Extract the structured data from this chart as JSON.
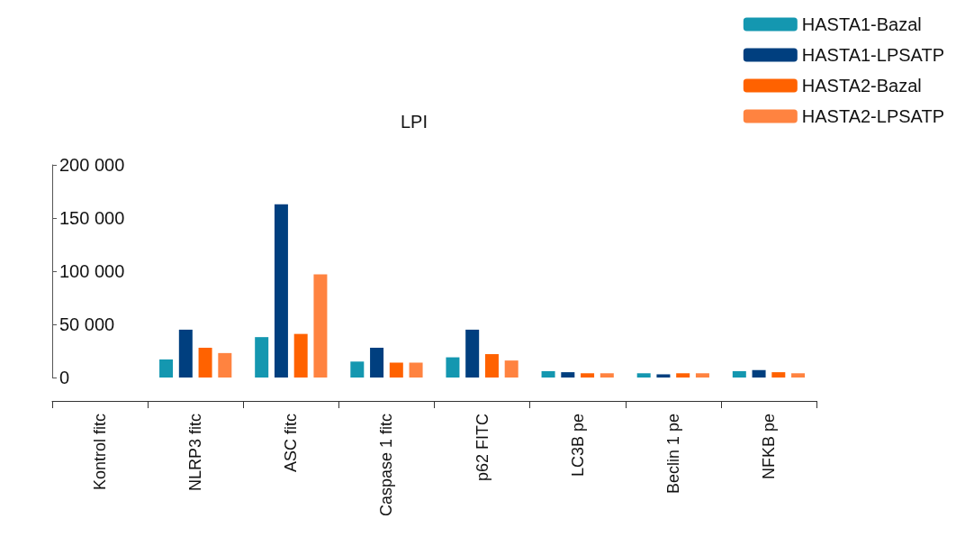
{
  "chart_data": {
    "type": "bar",
    "title": "LPI",
    "categories": [
      "Kontrol fitc",
      "NLRP3 fitc",
      "ASC fitc",
      "Caspase 1 fitc",
      "p62 FITC",
      "LC3B pe",
      "Beclin 1 pe",
      "NFKB pe"
    ],
    "series": [
      {
        "name": "HASTA1-Bazal",
        "color": "#1497b0",
        "values": [
          0,
          17000,
          38000,
          15000,
          19000,
          6000,
          4000,
          6000
        ]
      },
      {
        "name": "HASTA1-LPSATP",
        "color": "#003f7f",
        "values": [
          0,
          45000,
          163000,
          28000,
          45000,
          5000,
          3000,
          7000
        ]
      },
      {
        "name": "HASTA2-Bazal",
        "color": "#ff6200",
        "values": [
          0,
          28000,
          41000,
          14000,
          22000,
          4000,
          4000,
          5000
        ]
      },
      {
        "name": "HASTA2-LPSATP",
        "color": "#ff8340",
        "values": [
          0,
          23000,
          97000,
          14000,
          16000,
          4000,
          4000,
          4000
        ]
      }
    ],
    "ylim": [
      0,
      200000
    ],
    "yticks": [
      {
        "value": 0,
        "label": "0"
      },
      {
        "value": 50000,
        "label": "50 000"
      },
      {
        "value": 100000,
        "label": "100 000"
      },
      {
        "value": 150000,
        "label": "150 000"
      },
      {
        "value": 200000,
        "label": "200 000"
      }
    ],
    "grid": false,
    "legend": "top right"
  }
}
